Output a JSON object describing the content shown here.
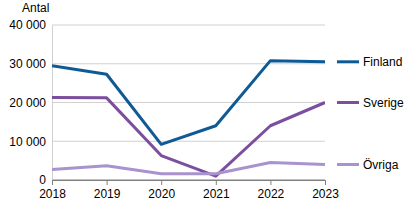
{
  "chart_data": {
    "type": "line",
    "ylabel": "Antal",
    "x": [
      2018,
      2019,
      2020,
      2021,
      2022,
      2023
    ],
    "xlim": [
      2018,
      2023
    ],
    "xticks": [
      2018,
      2019,
      2020,
      2021,
      2022,
      2023
    ],
    "ylim": [
      0,
      40000
    ],
    "yticks": [
      {
        "value": 0,
        "label": "0"
      },
      {
        "value": 10000,
        "label": "10 000"
      },
      {
        "value": 20000,
        "label": "20 000"
      },
      {
        "value": 30000,
        "label": "30 000"
      },
      {
        "value": 40000,
        "label": "40 000"
      }
    ],
    "grid": true,
    "legend": "right",
    "series": [
      {
        "name": "Finland",
        "color": "#0f5a94",
        "values": [
          29500,
          27300,
          9200,
          14000,
          30800,
          30500
        ]
      },
      {
        "name": "Sverige",
        "color": "#7b4f9e",
        "values": [
          21300,
          21200,
          6300,
          1000,
          14000,
          20000
        ]
      },
      {
        "name": "Övriga",
        "color": "#a993cf",
        "values": [
          2700,
          3700,
          1600,
          1600,
          4500,
          4000
        ]
      }
    ]
  }
}
